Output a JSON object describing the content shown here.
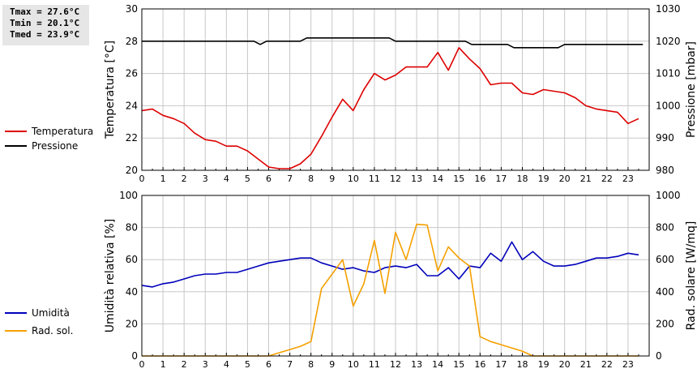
{
  "stats": {
    "tmax": "Tmax = 27.6°C",
    "tmin": "Tmin = 20.1°C",
    "tmed": "Tmed = 23.9°C"
  },
  "colors": {
    "temperature": "#dd0000",
    "pressure": "#000000",
    "humidity": "#0000bb",
    "radiation": "#f5a000",
    "grid": "#c8c8c8"
  },
  "chart_data": [
    {
      "type": "line",
      "x_ticks": [
        "0",
        "1",
        "2",
        "3",
        "4",
        "5",
        "6",
        "7",
        "8",
        "9",
        "10",
        "11",
        "12",
        "13",
        "14",
        "15",
        "16",
        "17",
        "18",
        "19",
        "20",
        "21",
        "22",
        "23"
      ],
      "xlim": [
        0,
        24
      ],
      "ylabel": "Temperatura [°C]",
      "ylim": [
        20,
        30
      ],
      "y_ticks": [
        20,
        22,
        24,
        26,
        28,
        30
      ],
      "y2label": "Pressione [mbar]",
      "y2lim": [
        980,
        1030
      ],
      "y2_ticks": [
        980,
        990,
        1000,
        1010,
        1020,
        1030
      ],
      "grid": true,
      "legend_placement": "left",
      "series": [
        {
          "name": "Temperatura",
          "axis": "left",
          "color": "#dd0000",
          "x": [
            0,
            0.5,
            1,
            1.5,
            2,
            2.5,
            3,
            3.5,
            4,
            4.5,
            5,
            5.5,
            6,
            6.5,
            7,
            7.5,
            8,
            8.5,
            9,
            9.5,
            10,
            10.5,
            11,
            11.5,
            12,
            12.5,
            13,
            13.5,
            14,
            14.5,
            15,
            15.5,
            16,
            16.5,
            17,
            17.5,
            18,
            18.5,
            19,
            19.5,
            20,
            20.5,
            21,
            21.5,
            22,
            22.5,
            23,
            23.5
          ],
          "y": [
            23.7,
            23.8,
            23.4,
            23.2,
            22.9,
            22.3,
            21.9,
            21.8,
            21.5,
            21.5,
            21.2,
            20.7,
            20.2,
            20.1,
            20.1,
            20.4,
            21.0,
            22.1,
            23.3,
            24.4,
            23.7,
            25.0,
            26.0,
            25.6,
            25.9,
            26.4,
            26.4,
            26.4,
            27.3,
            26.2,
            27.6,
            26.9,
            26.3,
            25.3,
            25.4,
            25.4,
            24.8,
            24.7,
            25.0,
            24.9,
            24.8,
            24.5,
            24.0,
            23.8,
            23.7,
            23.6,
            22.9,
            23.2
          ]
        },
        {
          "name": "Pressione",
          "axis": "right",
          "color": "#000000",
          "x": [
            0,
            5.3,
            5.6,
            5.9,
            7.5,
            7.8,
            11.7,
            12.0,
            15.3,
            15.6,
            17.3,
            17.6,
            19.7,
            20.0,
            23.7
          ],
          "y": [
            1020,
            1020,
            1019,
            1020,
            1020,
            1021,
            1021,
            1020,
            1020,
            1019,
            1019,
            1018,
            1018,
            1019,
            1019
          ]
        }
      ]
    },
    {
      "type": "line",
      "x_ticks": [
        "0",
        "1",
        "2",
        "3",
        "4",
        "5",
        "6",
        "7",
        "8",
        "9",
        "10",
        "11",
        "12",
        "13",
        "14",
        "15",
        "16",
        "17",
        "18",
        "19",
        "20",
        "21",
        "22",
        "23"
      ],
      "xlim": [
        0,
        24
      ],
      "ylabel": "Umidità relativa [%]",
      "ylim": [
        0,
        100
      ],
      "y_ticks": [
        0,
        20,
        40,
        60,
        80,
        100
      ],
      "y2label": "Rad. solare [W/mq]",
      "y2lim": [
        0,
        1000
      ],
      "y2_ticks": [
        0,
        200,
        400,
        600,
        800,
        1000
      ],
      "grid": true,
      "legend_placement": "left",
      "series": [
        {
          "name": "Umidità",
          "axis": "left",
          "color": "#0000bb",
          "x": [
            0,
            0.5,
            1,
            1.5,
            2,
            2.5,
            3,
            3.5,
            4,
            4.5,
            5,
            5.5,
            6,
            6.5,
            7,
            7.5,
            8,
            8.5,
            9,
            9.5,
            10,
            10.5,
            11,
            11.5,
            12,
            12.5,
            13,
            13.5,
            14,
            14.5,
            15,
            15.5,
            16,
            16.5,
            17,
            17.5,
            18,
            18.5,
            19,
            19.5,
            20,
            20.5,
            21,
            21.5,
            22,
            22.5,
            23,
            23.5
          ],
          "y": [
            44,
            43,
            45,
            46,
            48,
            50,
            51,
            51,
            52,
            52,
            54,
            56,
            58,
            59,
            60,
            61,
            61,
            58,
            56,
            54,
            55,
            53,
            52,
            55,
            56,
            55,
            57,
            50,
            50,
            55,
            48,
            56,
            55,
            64,
            59,
            71,
            60,
            65,
            59,
            56,
            56,
            57,
            59,
            61,
            61,
            62,
            64,
            63
          ]
        },
        {
          "name": "Rad. sol.",
          "axis": "right",
          "color": "#f5a000",
          "x": [
            0,
            6,
            6.5,
            7,
            7.5,
            8,
            8.5,
            9,
            9.5,
            10,
            10.5,
            11,
            11.5,
            12,
            12.5,
            13,
            13.5,
            14,
            14.5,
            15,
            15.5,
            16,
            16.5,
            17,
            17.5,
            18,
            18.5,
            23.5
          ],
          "y": [
            0,
            0,
            20,
            40,
            60,
            90,
            420,
            510,
            600,
            310,
            450,
            720,
            390,
            770,
            600,
            820,
            815,
            530,
            680,
            610,
            560,
            120,
            90,
            70,
            50,
            30,
            0,
            0
          ]
        }
      ]
    }
  ]
}
